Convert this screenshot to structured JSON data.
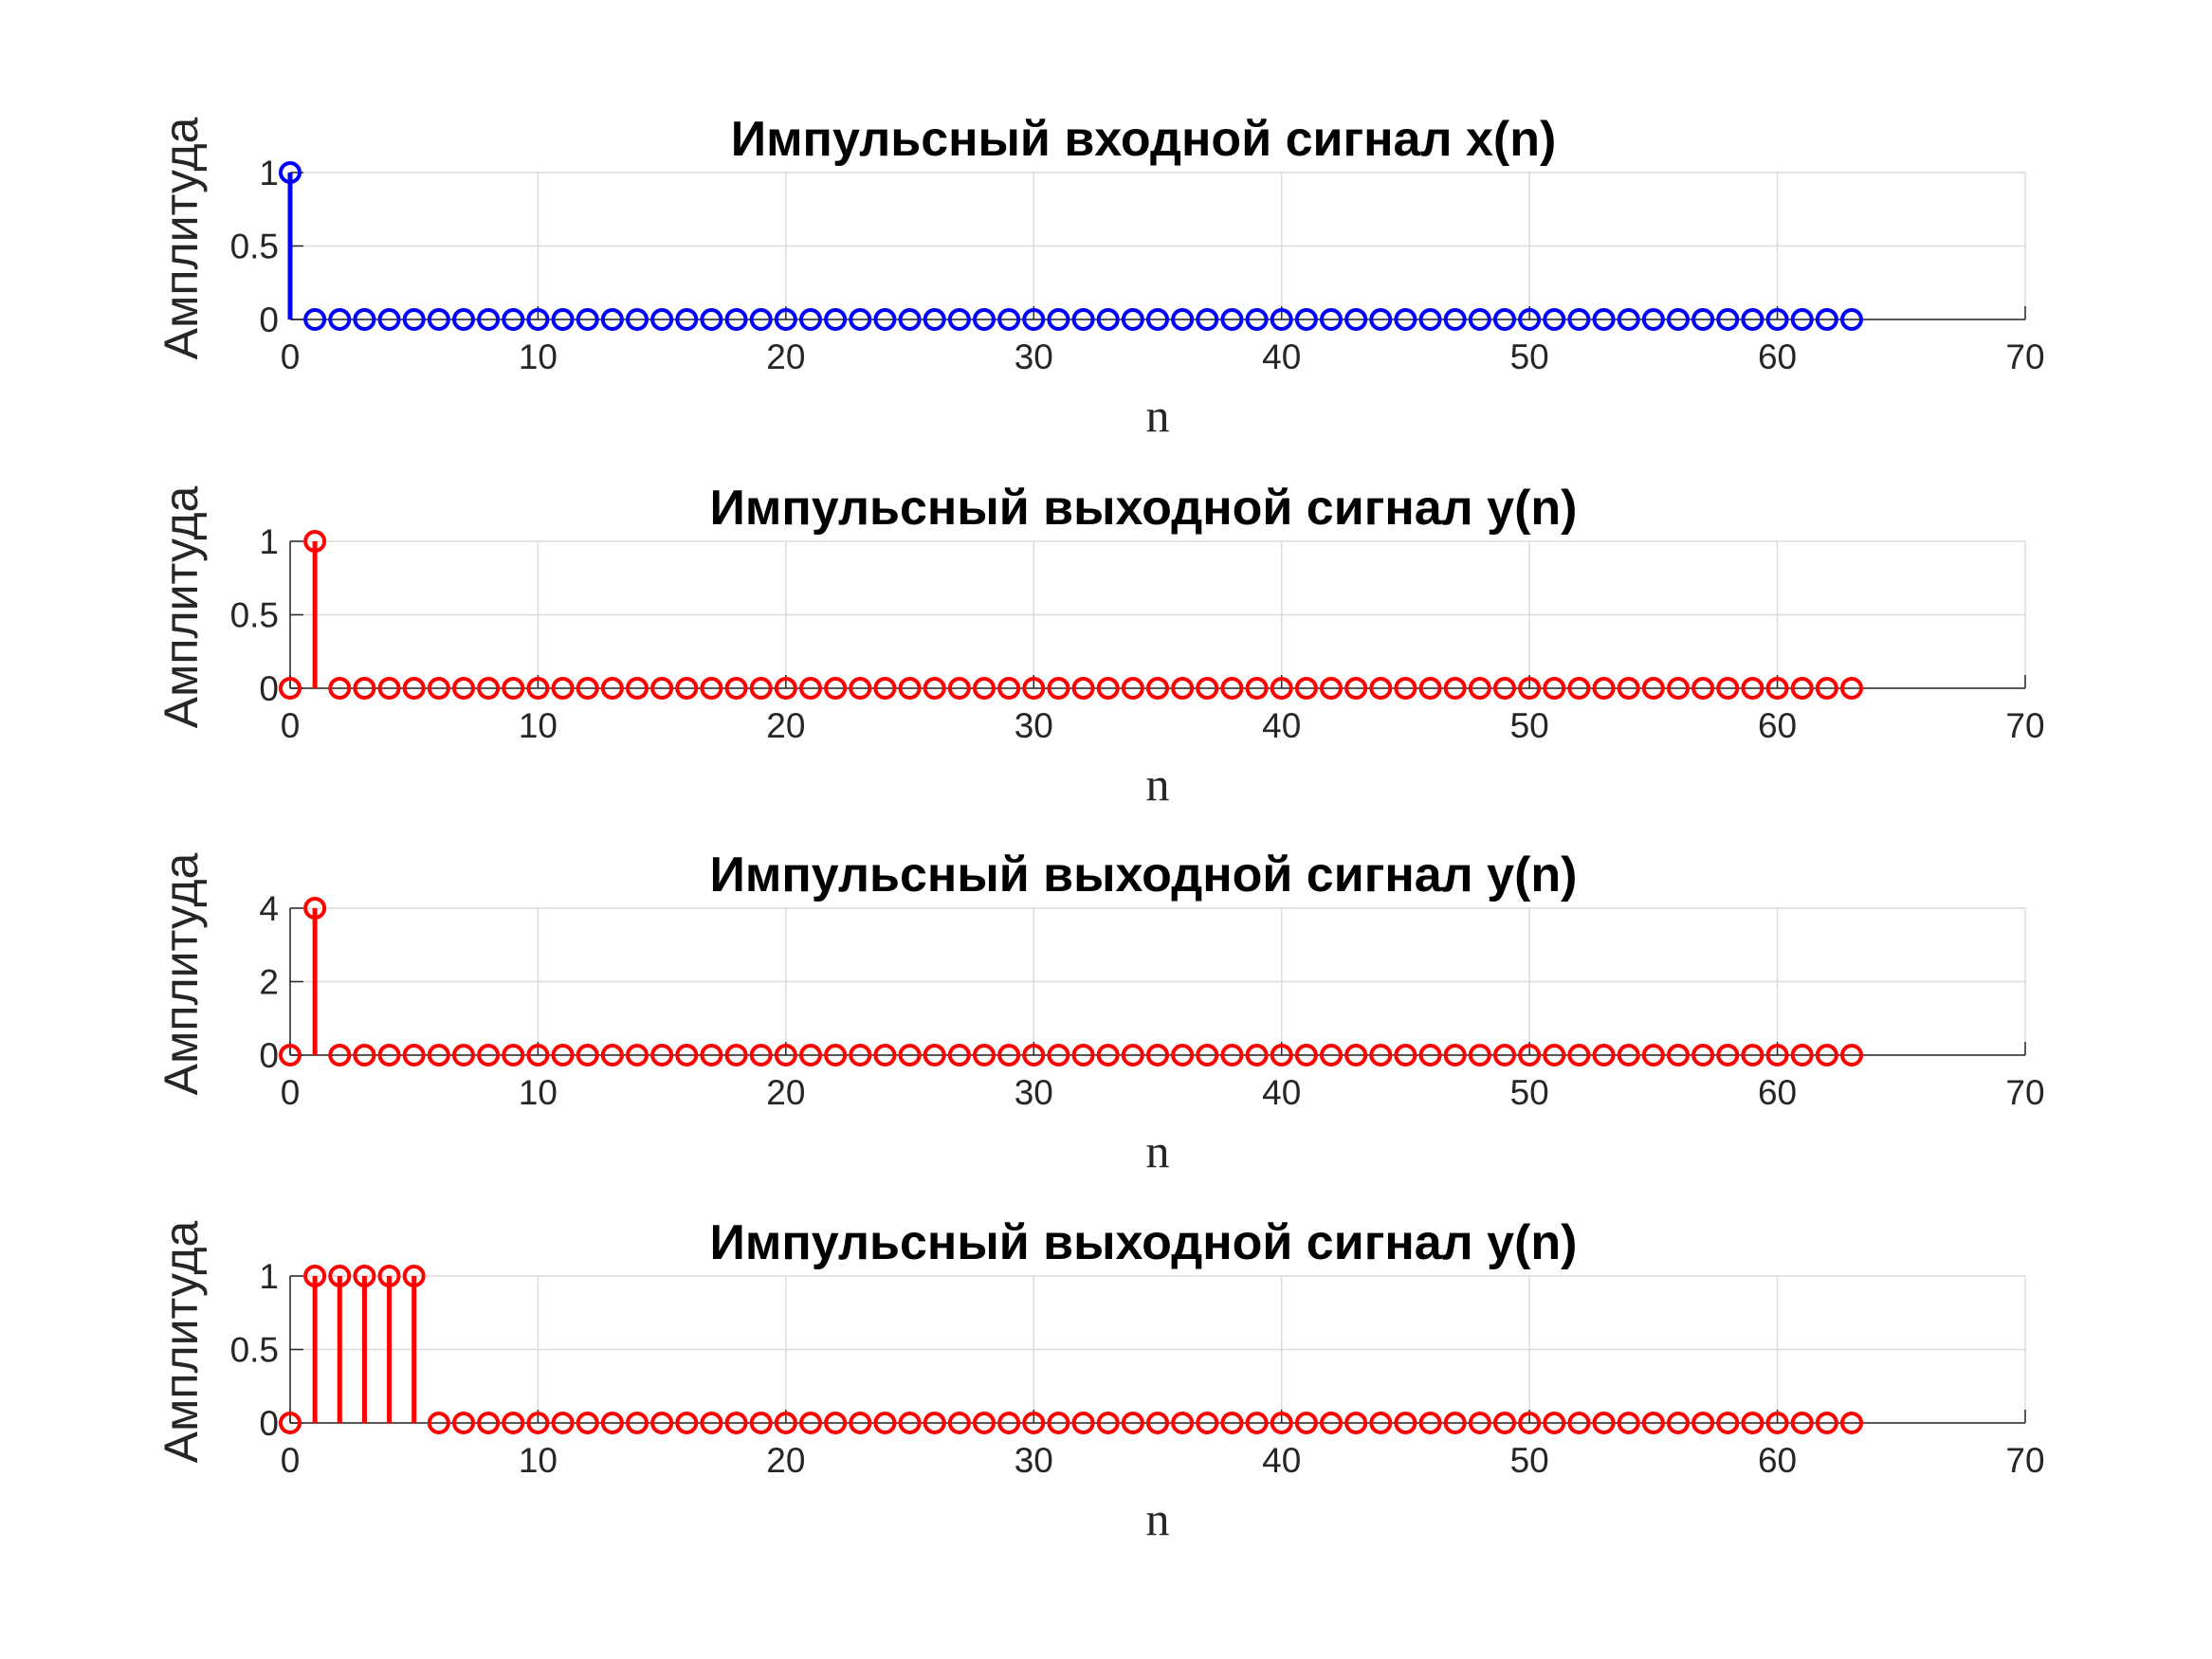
{
  "chart_data": [
    {
      "type": "stem",
      "title": "Импульсный входной сигнал x(n)",
      "xlabel": "n",
      "ylabel": "Амплитуда",
      "xlim": [
        0,
        70
      ],
      "ylim": [
        0,
        1
      ],
      "xticks": [
        0,
        10,
        20,
        30,
        40,
        50,
        60,
        70
      ],
      "yticks": [
        0,
        0.5,
        1
      ],
      "grid": true,
      "color": "#0000ff",
      "x_start": 0,
      "values": [
        1,
        0,
        0,
        0,
        0,
        0,
        0,
        0,
        0,
        0,
        0,
        0,
        0,
        0,
        0,
        0,
        0,
        0,
        0,
        0,
        0,
        0,
        0,
        0,
        0,
        0,
        0,
        0,
        0,
        0,
        0,
        0,
        0,
        0,
        0,
        0,
        0,
        0,
        0,
        0,
        0,
        0,
        0,
        0,
        0,
        0,
        0,
        0,
        0,
        0,
        0,
        0,
        0,
        0,
        0,
        0,
        0,
        0,
        0,
        0,
        0,
        0,
        0,
        0
      ]
    },
    {
      "type": "stem",
      "title": "Импульсный выходной сигнал y(n)",
      "xlabel": "n",
      "ylabel": "Амплитуда",
      "xlim": [
        0,
        70
      ],
      "ylim": [
        0,
        1
      ],
      "xticks": [
        0,
        10,
        20,
        30,
        40,
        50,
        60,
        70
      ],
      "yticks": [
        0,
        0.5,
        1
      ],
      "grid": true,
      "color": "#ff0000",
      "x_start": 0,
      "values": [
        0,
        1,
        0,
        0,
        0,
        0,
        0,
        0,
        0,
        0,
        0,
        0,
        0,
        0,
        0,
        0,
        0,
        0,
        0,
        0,
        0,
        0,
        0,
        0,
        0,
        0,
        0,
        0,
        0,
        0,
        0,
        0,
        0,
        0,
        0,
        0,
        0,
        0,
        0,
        0,
        0,
        0,
        0,
        0,
        0,
        0,
        0,
        0,
        0,
        0,
        0,
        0,
        0,
        0,
        0,
        0,
        0,
        0,
        0,
        0,
        0,
        0,
        0,
        0
      ]
    },
    {
      "type": "stem",
      "title": "Импульсный выходной сигнал y(n)",
      "xlabel": "n",
      "ylabel": "Амплитуда",
      "xlim": [
        0,
        70
      ],
      "ylim": [
        0,
        4
      ],
      "xticks": [
        0,
        10,
        20,
        30,
        40,
        50,
        60,
        70
      ],
      "yticks": [
        0,
        2,
        4
      ],
      "grid": true,
      "color": "#ff0000",
      "x_start": 0,
      "values": [
        0,
        4,
        0,
        0,
        0,
        0,
        0,
        0,
        0,
        0,
        0,
        0,
        0,
        0,
        0,
        0,
        0,
        0,
        0,
        0,
        0,
        0,
        0,
        0,
        0,
        0,
        0,
        0,
        0,
        0,
        0,
        0,
        0,
        0,
        0,
        0,
        0,
        0,
        0,
        0,
        0,
        0,
        0,
        0,
        0,
        0,
        0,
        0,
        0,
        0,
        0,
        0,
        0,
        0,
        0,
        0,
        0,
        0,
        0,
        0,
        0,
        0,
        0,
        0
      ]
    },
    {
      "type": "stem",
      "title": "Импульсный выходной сигнал y(n)",
      "xlabel": "n",
      "ylabel": "Амплитуда",
      "xlim": [
        0,
        70
      ],
      "ylim": [
        0,
        1
      ],
      "xticks": [
        0,
        10,
        20,
        30,
        40,
        50,
        60,
        70
      ],
      "yticks": [
        0,
        0.5,
        1
      ],
      "grid": true,
      "color": "#ff0000",
      "x_start": 0,
      "values": [
        0,
        1,
        1,
        1,
        1,
        1,
        0,
        0,
        0,
        0,
        0,
        0,
        0,
        0,
        0,
        0,
        0,
        0,
        0,
        0,
        0,
        0,
        0,
        0,
        0,
        0,
        0,
        0,
        0,
        0,
        0,
        0,
        0,
        0,
        0,
        0,
        0,
        0,
        0,
        0,
        0,
        0,
        0,
        0,
        0,
        0,
        0,
        0,
        0,
        0,
        0,
        0,
        0,
        0,
        0,
        0,
        0,
        0,
        0,
        0,
        0,
        0,
        0,
        0
      ]
    }
  ]
}
